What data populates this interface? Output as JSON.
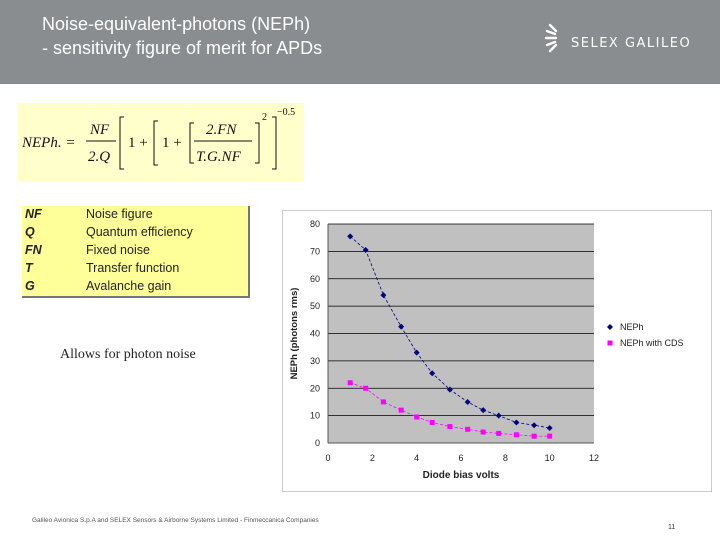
{
  "header": {
    "title_line1": "Noise-equivalent-photons (NEPh)",
    "title_line2": "- sensitivity figure of merit for APDs",
    "logo_text": "SELEX GALILEO"
  },
  "formula": {
    "lhs": "NEPh. =",
    "nf": "NF",
    "two_q": "2.Q",
    "one_a": "1 +",
    "one_b": "1 +",
    "two_fn": "2.FN",
    "tgnf": "T.G.NF",
    "exp_2": "2",
    "exp_05": "−0.5"
  },
  "definitions": [
    {
      "symbol": "NF",
      "text": "Noise figure"
    },
    {
      "symbol": "Q",
      "text": "Quantum efficiency"
    },
    {
      "symbol": "FN",
      "text": "Fixed noise"
    },
    {
      "symbol": "T",
      "text": "Transfer function"
    },
    {
      "symbol": "G",
      "text": "Avalanche gain"
    }
  ],
  "note": "Allows for photon noise",
  "footer": "Galileo Avionica S.p.A and SELEX Sensors & Airborne Systems Limited - Finmeccanica Companies",
  "page_number": "11",
  "colors": {
    "header_bg": "#8a8d90",
    "formula_bg": "#ffffcc",
    "defs_bg": "#ffff99",
    "series1": "#000080",
    "series2": "#ff00ff",
    "plot_bg": "#c0c0c0"
  },
  "chart_data": {
    "type": "line",
    "xlabel": "Diode bias volts",
    "ylabel": "NEPh (photons rms)",
    "xlim": [
      0,
      12
    ],
    "ylim": [
      0,
      80
    ],
    "xticks": [
      0,
      2,
      4,
      6,
      8,
      10,
      12
    ],
    "yticks": [
      0,
      10,
      20,
      30,
      40,
      50,
      60,
      70,
      80
    ],
    "grid": true,
    "legend": "right",
    "series": [
      {
        "name": "NEPh",
        "marker": "diamond",
        "color": "#000080",
        "x": [
          1,
          1.7,
          2.5,
          3.3,
          4,
          4.7,
          5.5,
          6.3,
          7,
          7.7,
          8.5,
          9.3,
          10
        ],
        "y": [
          75.5,
          70.5,
          54,
          42.5,
          33,
          25.5,
          19.5,
          15,
          12,
          10,
          7.5,
          6.5,
          5.5
        ]
      },
      {
        "name": "NEPh with CDS",
        "marker": "square",
        "color": "#ff00ff",
        "x": [
          1,
          1.7,
          2.5,
          3.3,
          4,
          4.7,
          5.5,
          6.3,
          7,
          7.7,
          8.5,
          9.3,
          10
        ],
        "y": [
          22,
          20,
          15,
          12,
          9.5,
          7.5,
          6,
          5,
          4,
          3.5,
          3,
          2.5,
          2.5
        ]
      }
    ]
  }
}
